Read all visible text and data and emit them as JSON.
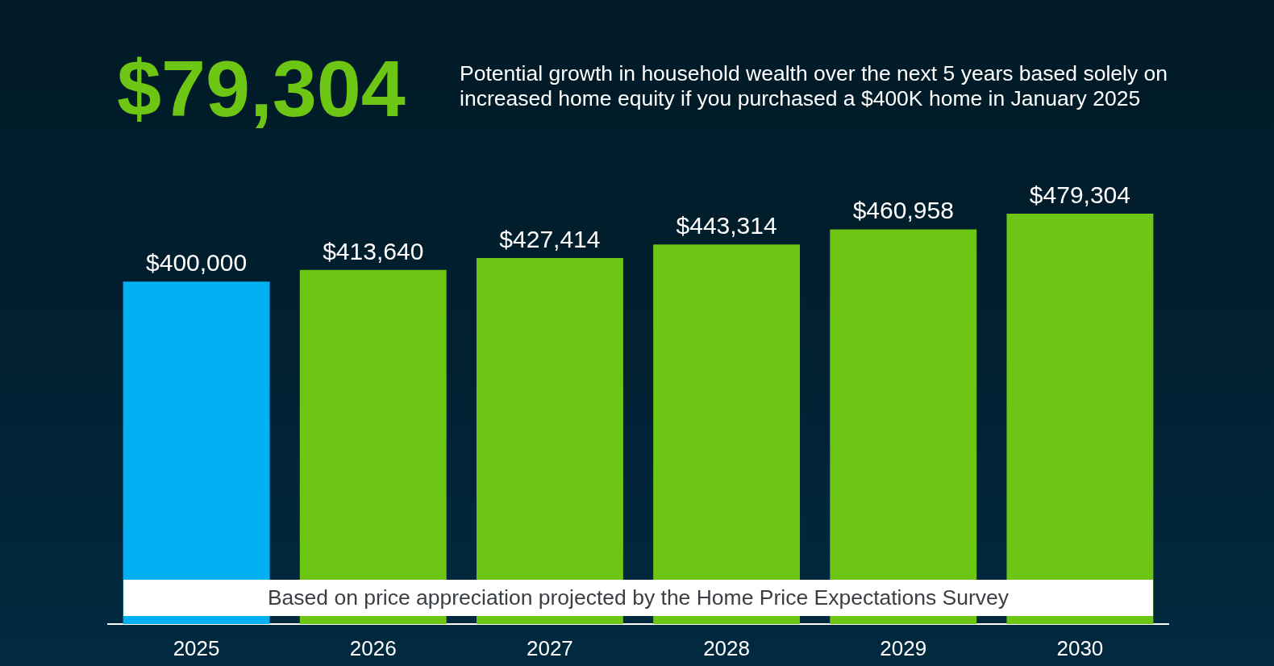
{
  "chart_data": {
    "type": "bar",
    "title": "$79,304",
    "subtitle": "Potential growth in household wealth over the next 5 years based solely on increased home equity if you purchased a $400K home in January 2025",
    "categories": [
      "2025",
      "2026",
      "2027",
      "2028",
      "2029",
      "2030"
    ],
    "values": [
      400000,
      413640,
      427414,
      443314,
      460958,
      479304
    ],
    "colors": [
      "#00b0f0",
      "#6cc613",
      "#6cc613",
      "#6cc613",
      "#6cc613",
      "#6cc613"
    ],
    "value_labels": [
      "$400,000",
      "$413,640",
      "$427,414",
      "$443,314",
      "$460,958",
      "$479,304"
    ],
    "annotations": [
      "Based on price appreciation projected by the Home Price Expectations Survey"
    ]
  }
}
